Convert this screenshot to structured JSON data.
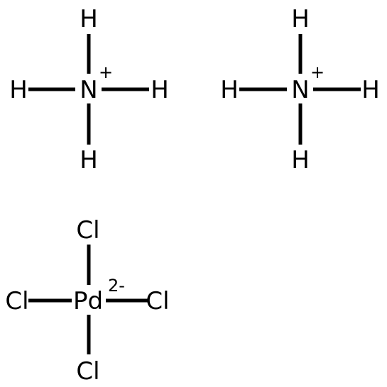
{
  "ammonium_1": {
    "center": "N",
    "charge": "+",
    "top": "H",
    "left": "H",
    "right": "H",
    "bottom": "H"
  },
  "ammonium_2": {
    "center": "N",
    "charge": "+",
    "top": "H",
    "left": "H",
    "right": "H",
    "bottom": "H"
  },
  "tetrachloropalladate": {
    "center": "Pd",
    "charge": "2-",
    "top": "Cl",
    "left": "Cl",
    "right": "Cl",
    "bottom": "Cl"
  },
  "colors": {
    "ink": "#000000",
    "background": "#ffffff"
  }
}
